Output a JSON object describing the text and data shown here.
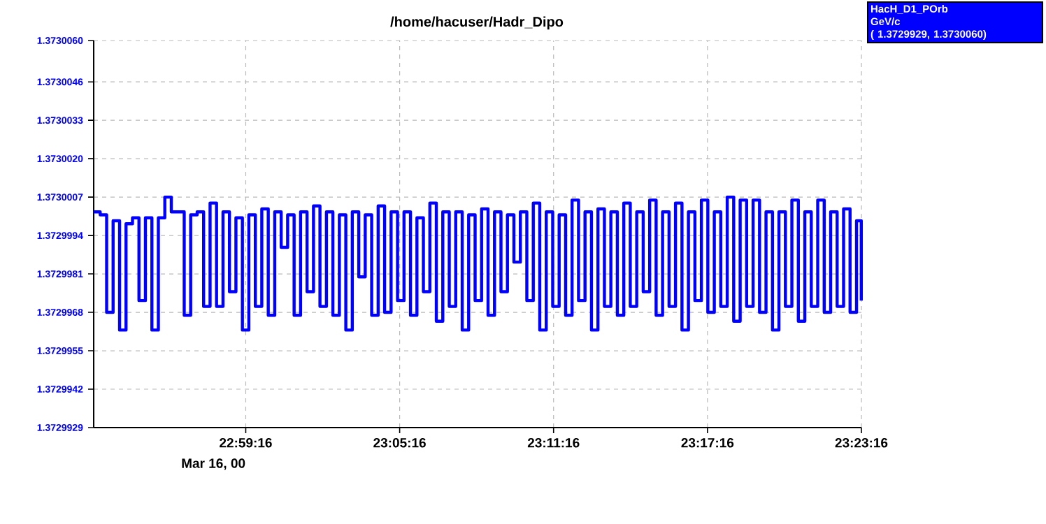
{
  "chart_data": {
    "type": "step",
    "title": "/home/hacuser/Hadr_Dipo",
    "annotations": [
      "Mar 16, 00",
      "GeV/c",
      "( 1.3729929, 1.3730060)"
    ],
    "xlim": [
      22.889,
      23.387778
    ],
    "xticks": [
      {
        "value": 22.987778,
        "label": "22:59:16"
      },
      {
        "value": 23.087778,
        "label": "23:05:16"
      },
      {
        "value": 23.187778,
        "label": "23:11:16"
      },
      {
        "value": 23.287778,
        "label": "23:17:16"
      },
      {
        "value": 23.387778,
        "label": "23:23:16"
      }
    ],
    "ylim": [
      1.3729929,
      1.373006
    ],
    "yticks": [
      {
        "value": 1.3729929,
        "label": "1.3729929"
      },
      {
        "value": 1.3729942,
        "label": "1.3729942"
      },
      {
        "value": 1.3729955,
        "label": "1.3729955"
      },
      {
        "value": 1.3729968,
        "label": "1.3729968"
      },
      {
        "value": 1.3729981,
        "label": "1.3729981"
      },
      {
        "value": 1.3729994,
        "label": "1.3729994"
      },
      {
        "value": 1.3730007,
        "label": "1.3730007"
      },
      {
        "value": 1.373002,
        "label": "1.3730020"
      },
      {
        "value": 1.3730033,
        "label": "1.3730033"
      },
      {
        "value": 1.3730046,
        "label": "1.3730046"
      },
      {
        "value": 1.373006,
        "label": "1.3730060"
      }
    ],
    "grid": true,
    "legend": "top right",
    "marker": "none",
    "line_style": "solid",
    "series": [
      {
        "name": "HacH_D1_POrb",
        "color": "#0000ff",
        "x": [
          22.889,
          22.8932,
          22.8974,
          22.9016,
          22.9058,
          22.91,
          22.9142,
          22.9184,
          22.9226,
          22.9268,
          22.931,
          22.9352,
          22.9394,
          22.9436,
          22.9478,
          22.952,
          22.9562,
          22.9604,
          22.9646,
          22.9688,
          22.973,
          22.9772,
          22.9814,
          22.9856,
          22.9898,
          22.994,
          22.9982,
          23.0024,
          23.0066,
          23.0108,
          23.015,
          23.0192,
          23.0234,
          23.0276,
          23.0318,
          23.036,
          23.0402,
          23.0444,
          23.0486,
          23.0528,
          23.057,
          23.0612,
          23.0654,
          23.0696,
          23.0738,
          23.078,
          23.0822,
          23.0864,
          23.0906,
          23.0948,
          23.099,
          23.1032,
          23.1074,
          23.1116,
          23.1158,
          23.12,
          23.1242,
          23.1284,
          23.1326,
          23.1368,
          23.141,
          23.1452,
          23.1494,
          23.1536,
          23.1578,
          23.162,
          23.1662,
          23.1704,
          23.1746,
          23.1788,
          23.183,
          23.1872,
          23.1914,
          23.1956,
          23.1998,
          23.204,
          23.2082,
          23.2124,
          23.2166,
          23.2208,
          23.225,
          23.2292,
          23.2334,
          23.2376,
          23.2418,
          23.246,
          23.2502,
          23.2544,
          23.2586,
          23.2628,
          23.267,
          23.2712,
          23.2754,
          23.2796,
          23.2838,
          23.288,
          23.2922,
          23.2964,
          23.3006,
          23.3048,
          23.309,
          23.3132,
          23.3174,
          23.3216,
          23.3258,
          23.33,
          23.3342,
          23.3384,
          23.3426,
          23.3468,
          23.351,
          23.3552,
          23.3594,
          23.3636,
          23.3678,
          23.372,
          23.3762,
          23.3804,
          23.3846,
          23.3877
        ],
        "values": [
          1.3730002,
          1.3730001,
          1.3729968,
          1.3729999,
          1.3729962,
          1.3729998,
          1.373,
          1.3729972,
          1.373,
          1.3729962,
          1.373,
          1.3730007,
          1.3730002,
          1.3730002,
          1.3729967,
          1.3730001,
          1.3730002,
          1.372997,
          1.3730005,
          1.372997,
          1.3730002,
          1.3729975,
          1.373,
          1.3729962,
          1.3730001,
          1.372997,
          1.3730003,
          1.3729967,
          1.3730002,
          1.372999,
          1.3730001,
          1.3729967,
          1.3730002,
          1.3729975,
          1.3730004,
          1.372997,
          1.3730002,
          1.3729967,
          1.3730001,
          1.3729962,
          1.3730002,
          1.372998,
          1.3730001,
          1.3729967,
          1.3730004,
          1.3729968,
          1.3730002,
          1.3729972,
          1.3730002,
          1.3729967,
          1.373,
          1.3729975,
          1.3730005,
          1.3729965,
          1.3730002,
          1.372997,
          1.3730002,
          1.3729962,
          1.3730001,
          1.3729972,
          1.3730003,
          1.3729967,
          1.3730002,
          1.3729975,
          1.3730001,
          1.3729985,
          1.3730002,
          1.3729972,
          1.3730005,
          1.3729962,
          1.3730002,
          1.372997,
          1.3730001,
          1.3729967,
          1.3730006,
          1.3729972,
          1.3730002,
          1.3729962,
          1.3730003,
          1.372997,
          1.3730002,
          1.3729967,
          1.3730005,
          1.372997,
          1.3730002,
          1.3729975,
          1.3730006,
          1.3729967,
          1.3730002,
          1.372997,
          1.3730005,
          1.3729962,
          1.3730002,
          1.3729972,
          1.3730006,
          1.3729968,
          1.3730002,
          1.372997,
          1.3730007,
          1.3729965,
          1.3730006,
          1.372997,
          1.3730006,
          1.3729968,
          1.3730002,
          1.3729962,
          1.3730002,
          1.372997,
          1.3730006,
          1.3729965,
          1.3730002,
          1.372997,
          1.3730006,
          1.3729968,
          1.3730002,
          1.372997,
          1.3730003,
          1.3729968,
          1.3729999,
          1.3729972
        ]
      }
    ]
  }
}
